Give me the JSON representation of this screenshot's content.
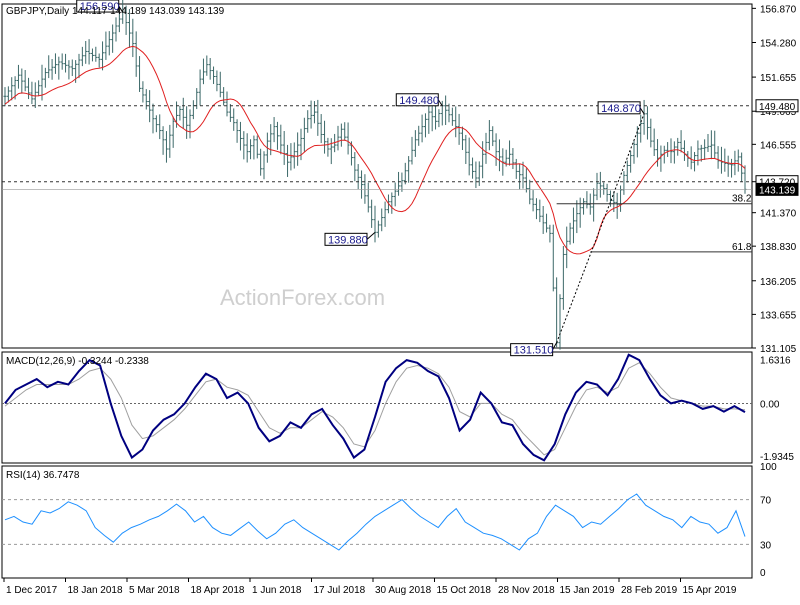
{
  "chart_data": [
    {
      "type": "ohlc",
      "header": "GBPJPY,Daily  144.117 144.189 143.039 143.139",
      "ylim": [
        131.105,
        157.2
      ],
      "y_ticks": [
        "156.870",
        "154.280",
        "151.655",
        "149.065",
        "146.555",
        "143.720",
        "141.370",
        "138.830",
        "136.205",
        "133.655",
        "131.105"
      ],
      "x_ticks": [
        "1 Dec 2017",
        "18 Jan 2018",
        "5 Mar 2018",
        "18 Apr 2018",
        "1 Jun 2018",
        "17 Jul 2018",
        "30 Aug 2018",
        "15 Oct 2018",
        "28 Nov 2018",
        "15 Jan 2019",
        "28 Feb 2019",
        "15 Apr 2019"
      ],
      "price_path": [
        [
          0,
          150.2
        ],
        [
          4,
          151.8
        ],
        [
          8,
          150.0
        ],
        [
          12,
          152.0
        ],
        [
          16,
          152.8
        ],
        [
          20,
          152.3
        ],
        [
          24,
          153.6
        ],
        [
          28,
          153.0
        ],
        [
          32,
          155.0
        ],
        [
          35,
          156.59
        ],
        [
          38,
          154.2
        ],
        [
          40,
          150.8
        ],
        [
          42,
          149.8
        ],
        [
          44,
          148.5
        ],
        [
          46,
          147.6
        ],
        [
          48,
          146.2
        ],
        [
          50,
          148.3
        ],
        [
          52,
          149.2
        ],
        [
          54,
          148.0
        ],
        [
          56,
          149.5
        ],
        [
          58,
          151.5
        ],
        [
          60,
          152.6
        ],
        [
          62,
          151.7
        ],
        [
          64,
          150.5
        ],
        [
          66,
          149.0
        ],
        [
          68,
          148.2
        ],
        [
          70,
          147.0
        ],
        [
          72,
          146.0
        ],
        [
          74,
          146.9
        ],
        [
          76,
          144.7
        ],
        [
          78,
          146.8
        ],
        [
          80,
          147.9
        ],
        [
          82,
          146.5
        ],
        [
          84,
          145.2
        ],
        [
          86,
          146.0
        ],
        [
          88,
          147.0
        ],
        [
          90,
          148.5
        ],
        [
          92,
          149.0
        ],
        [
          94,
          147.3
        ],
        [
          96,
          146.2
        ],
        [
          98,
          146.5
        ],
        [
          100,
          147.7
        ],
        [
          102,
          146.5
        ],
        [
          104,
          144.6
        ],
        [
          106,
          143.5
        ],
        [
          108,
          141.8
        ],
        [
          110,
          139.88
        ],
        [
          112,
          141.0
        ],
        [
          114,
          142.2
        ],
        [
          116,
          143.0
        ],
        [
          118,
          143.8
        ],
        [
          120,
          145.3
        ],
        [
          122,
          146.9
        ],
        [
          124,
          147.9
        ],
        [
          126,
          149.0
        ],
        [
          128,
          148.3
        ],
        [
          130,
          149.48
        ],
        [
          132,
          148.8
        ],
        [
          134,
          147.9
        ],
        [
          136,
          146.9
        ],
        [
          138,
          145.0
        ],
        [
          140,
          144.0
        ],
        [
          142,
          145.8
        ],
        [
          144,
          147.6
        ],
        [
          146,
          146.0
        ],
        [
          148,
          145.2
        ],
        [
          150,
          145.8
        ],
        [
          152,
          144.5
        ],
        [
          154,
          144.0
        ],
        [
          156,
          142.4
        ],
        [
          158,
          141.6
        ],
        [
          160,
          140.6
        ],
        [
          162,
          139.8
        ],
        [
          164,
          131.51
        ],
        [
          166,
          138.2
        ],
        [
          168,
          140.2
        ],
        [
          170,
          141.3
        ],
        [
          172,
          142.2
        ],
        [
          174,
          141.8
        ],
        [
          176,
          143.6
        ],
        [
          178,
          143.2
        ],
        [
          180,
          142.3
        ],
        [
          182,
          142.0
        ],
        [
          184,
          144.2
        ],
        [
          186,
          145.7
        ],
        [
          188,
          147.4
        ],
        [
          190,
          148.87
        ],
        [
          192,
          146.8
        ],
        [
          194,
          145.5
        ],
        [
          196,
          146.1
        ],
        [
          198,
          146.0
        ],
        [
          200,
          146.7
        ],
        [
          202,
          145.8
        ],
        [
          204,
          145.2
        ],
        [
          206,
          146.2
        ],
        [
          208,
          146.3
        ],
        [
          210,
          146.5
        ],
        [
          212,
          145.3
        ],
        [
          214,
          145.1
        ],
        [
          216,
          145.0
        ],
        [
          218,
          145.6
        ],
        [
          220,
          143.14
        ]
      ],
      "callouts": [
        {
          "label": "156.590",
          "bar": 35,
          "value": 156.59
        },
        {
          "label": "149.480",
          "bar": 130,
          "value": 149.48
        },
        {
          "label": "148.870",
          "bar": 190,
          "value": 148.87
        },
        {
          "label": "139.880",
          "bar": 110,
          "value": 139.88
        },
        {
          "label": "131.510",
          "bar": 164,
          "value": 131.51
        }
      ],
      "level_labels": [
        {
          "label": "149.480",
          "value": 149.48
        },
        {
          "label": "143.720",
          "value": 143.72
        },
        {
          "label": "143.139",
          "value": 143.139
        }
      ],
      "fib_levels": [
        {
          "label": "38.2",
          "value": 142.05
        },
        {
          "label": "61.8",
          "value": 138.4
        }
      ],
      "watermark": "ActionForex.com",
      "colors": {
        "bars": "#3b6868",
        "ma": "#e02020",
        "levels": "#333333",
        "label_box": "#1a1a8c"
      }
    },
    {
      "type": "line",
      "header": "MACD(12,26,9) -0.3244 -0.2338",
      "ylim": [
        -2.2,
        1.9
      ],
      "y_ticks": [
        "1.6316",
        "0.00",
        "-1.9345"
      ],
      "series": [
        {
          "values": [
            0.0,
            0.5,
            0.7,
            0.9,
            0.6,
            0.8,
            0.7,
            1.2,
            1.6,
            1.4,
            0.0,
            -1.2,
            -2.0,
            -1.7,
            -1.0,
            -0.6,
            -0.4,
            0.0,
            0.6,
            1.1,
            0.9,
            0.2,
            0.4,
            0.0,
            -0.9,
            -1.4,
            -1.2,
            -0.7,
            -0.9,
            -0.4,
            -0.2,
            -0.8,
            -1.3,
            -2.0,
            -1.7,
            -0.5,
            0.8,
            1.3,
            1.6,
            1.5,
            1.2,
            1.0,
            0.2,
            -1.0,
            -0.6,
            0.4,
            0.0,
            -0.7,
            -0.8,
            -1.5,
            -1.9,
            -2.1,
            -1.5,
            -0.4,
            0.4,
            0.8,
            0.7,
            0.3,
            0.9,
            1.8,
            1.6,
            0.9,
            0.3,
            0.0,
            0.1,
            0.0,
            -0.2,
            -0.1,
            -0.3,
            -0.1,
            -0.32
          ]
        },
        {
          "values": [
            -0.1,
            0.2,
            0.5,
            0.7,
            0.7,
            0.7,
            0.7,
            0.9,
            1.2,
            1.3,
            0.9,
            0.2,
            -0.8,
            -1.3,
            -1.2,
            -0.9,
            -0.6,
            -0.2,
            0.3,
            0.8,
            0.9,
            0.6,
            0.5,
            0.3,
            -0.3,
            -0.9,
            -1.1,
            -0.9,
            -0.9,
            -0.6,
            -0.3,
            -0.5,
            -0.9,
            -1.5,
            -1.6,
            -1.0,
            0.0,
            0.8,
            1.3,
            1.4,
            1.3,
            1.1,
            0.6,
            -0.3,
            -0.5,
            0.0,
            0.0,
            -0.4,
            -0.6,
            -1.1,
            -1.5,
            -1.9,
            -1.7,
            -0.9,
            -0.1,
            0.5,
            0.6,
            0.4,
            0.6,
            1.3,
            1.5,
            1.1,
            0.6,
            0.2,
            0.1,
            0.0,
            -0.1,
            -0.1,
            -0.2,
            -0.2,
            -0.23
          ]
        }
      ],
      "colors": {
        "macd": "#000080",
        "signal": "#a0a0a0",
        "zero": "#666666"
      }
    },
    {
      "type": "line",
      "header": "RSI(14) 36.7478",
      "ylim": [
        0,
        100
      ],
      "y_ticks": [
        "100",
        "70",
        "30",
        "0"
      ],
      "series": [
        {
          "values": [
            52,
            55,
            50,
            48,
            60,
            58,
            62,
            68,
            65,
            60,
            45,
            38,
            32,
            40,
            45,
            48,
            52,
            55,
            60,
            66,
            60,
            50,
            55,
            45,
            40,
            38,
            44,
            50,
            42,
            35,
            40,
            48,
            52,
            45,
            40,
            35,
            30,
            25,
            33,
            40,
            48,
            55,
            60,
            65,
            70,
            62,
            55,
            50,
            45,
            55,
            62,
            50,
            45,
            40,
            38,
            35,
            30,
            25,
            35,
            40,
            55,
            65,
            60,
            55,
            45,
            50,
            48,
            55,
            62,
            70,
            75,
            65,
            60,
            55,
            52,
            45,
            55,
            50,
            48,
            40,
            45,
            60,
            37
          ]
        }
      ],
      "colors": {
        "rsi": "#1e90ff",
        "levels": "#999999"
      }
    }
  ]
}
